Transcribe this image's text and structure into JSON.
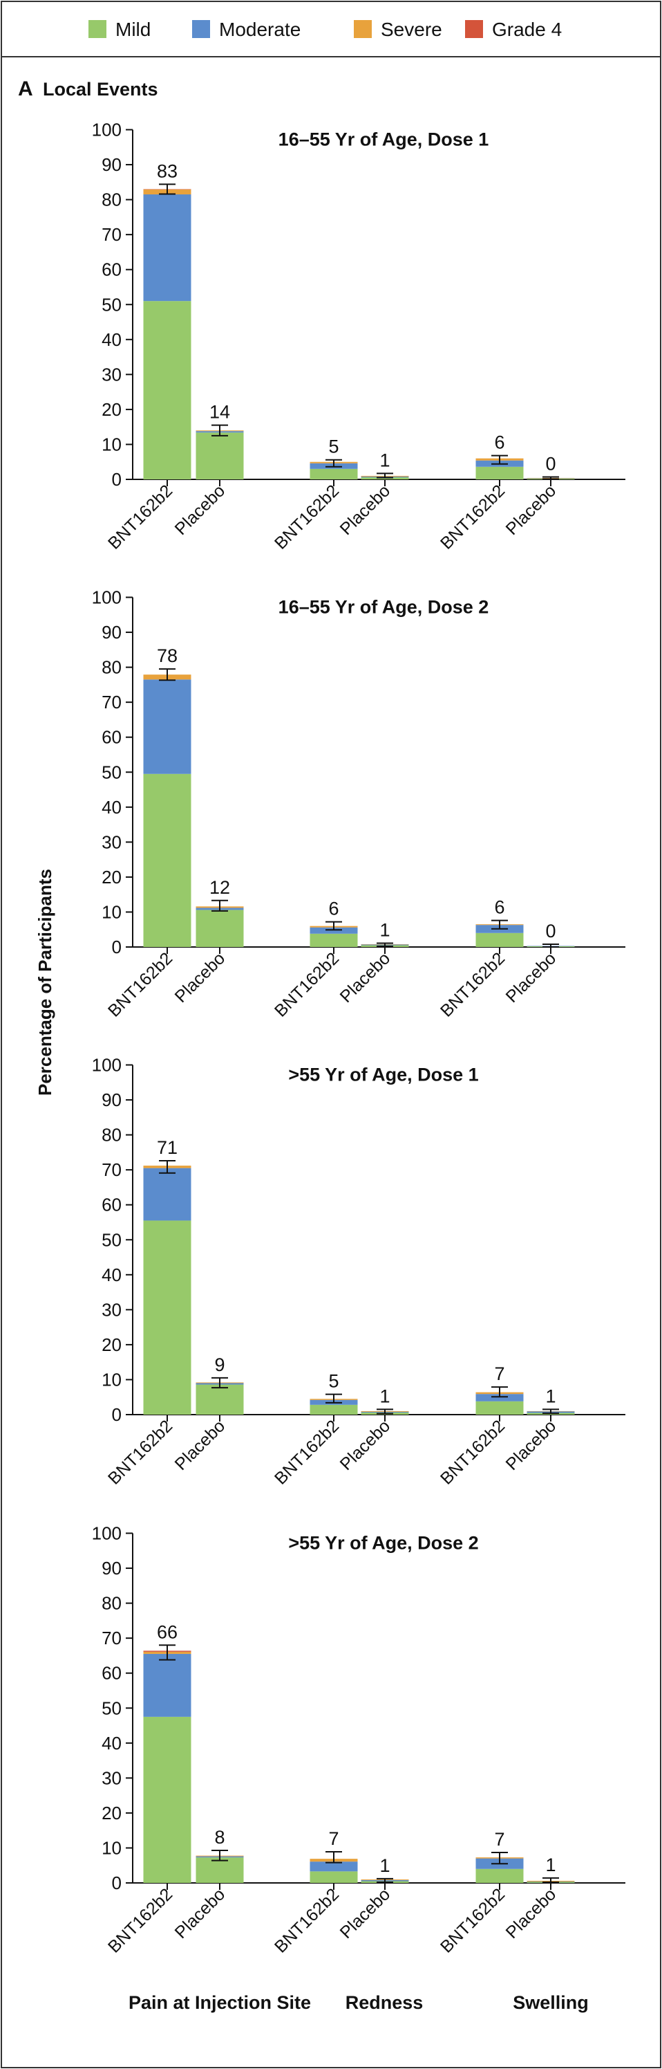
{
  "panel": {
    "letter": "A",
    "title": "Local Events"
  },
  "y_axis_title": "Percentage of Participants",
  "legend": [
    {
      "label": "Mild",
      "color": "#97c96a"
    },
    {
      "label": "Moderate",
      "color": "#5b8ccd"
    },
    {
      "label": "Severe",
      "color": "#e8a23c"
    },
    {
      "label": "Grade 4",
      "color": "#d4543a"
    }
  ],
  "event_labels": [
    "Pain at Injection Site",
    "Redness",
    "Swelling"
  ],
  "chart_data": [
    {
      "type": "bar",
      "stacked": true,
      "title": "16–55 Yr of Age, Dose 1",
      "groups": [
        "Pain at Injection Site",
        "Redness",
        "Swelling"
      ],
      "categories": [
        "BNT162b2",
        "Placebo",
        "BNT162b2",
        "Placebo",
        "BNT162b2",
        "Placebo"
      ],
      "series": [
        {
          "name": "Mild",
          "values": [
            51,
            13.4,
            3,
            0.6,
            3.6,
            0.2
          ]
        },
        {
          "name": "Moderate",
          "values": [
            30.5,
            0.4,
            1.6,
            0.2,
            1.8,
            0.1
          ]
        },
        {
          "name": "Severe",
          "values": [
            1.4,
            0.2,
            0.4,
            0.2,
            0.6,
            0.1
          ]
        },
        {
          "name": "Grade 4",
          "values": [
            0.1,
            0,
            0,
            0,
            0,
            0
          ]
        }
      ],
      "totals": [
        83,
        14,
        5,
        1,
        6,
        0
      ],
      "error": [
        [
          81.6,
          84.4
        ],
        [
          12.5,
          15.5
        ],
        [
          3.6,
          5.6
        ],
        [
          0.5,
          1.7
        ],
        [
          4.4,
          6.8
        ],
        [
          0.1,
          0.7
        ]
      ],
      "ylim": [
        0,
        100
      ],
      "yticks": [
        0,
        10,
        20,
        30,
        40,
        50,
        60,
        70,
        80,
        90,
        100
      ]
    },
    {
      "type": "bar",
      "stacked": true,
      "title": "16–55 Yr of Age, Dose 2",
      "groups": [
        "Pain at Injection Site",
        "Redness",
        "Swelling"
      ],
      "categories": [
        "BNT162b2",
        "Placebo",
        "BNT162b2",
        "Placebo",
        "BNT162b2",
        "Placebo"
      ],
      "series": [
        {
          "name": "Mild",
          "values": [
            49.5,
            10.6,
            3.8,
            0.5,
            4,
            0.2
          ]
        },
        {
          "name": "Moderate",
          "values": [
            27,
            0.6,
            1.8,
            0.2,
            2.3,
            0.1
          ]
        },
        {
          "name": "Severe",
          "values": [
            1.4,
            0.4,
            0.4,
            0.1,
            0.2,
            0
          ]
        },
        {
          "name": "Grade 4",
          "values": [
            0,
            0,
            0,
            0,
            0,
            0
          ]
        }
      ],
      "totals": [
        78,
        12,
        6,
        1,
        6,
        0
      ],
      "error": [
        [
          76.3,
          79.5
        ],
        [
          10.3,
          13.3
        ],
        [
          4.9,
          7.2
        ],
        [
          0.2,
          1.1
        ],
        [
          5.2,
          7.6
        ],
        [
          0,
          0.8
        ]
      ],
      "ylim": [
        0,
        100
      ],
      "yticks": [
        0,
        10,
        20,
        30,
        40,
        50,
        60,
        70,
        80,
        90,
        100
      ]
    },
    {
      "type": "bar",
      "stacked": true,
      "title": ">55 Yr of Age, Dose 1",
      "groups": [
        "Pain at Injection Site",
        "Redness",
        "Swelling"
      ],
      "categories": [
        "BNT162b2",
        "Placebo",
        "BNT162b2",
        "Placebo",
        "BNT162b2",
        "Placebo"
      ],
      "series": [
        {
          "name": "Mild",
          "values": [
            55.5,
            8.6,
            2.8,
            0.6,
            3.8,
            0.5
          ]
        },
        {
          "name": "Moderate",
          "values": [
            15,
            0.4,
            1.4,
            0.2,
            2.1,
            0.4
          ]
        },
        {
          "name": "Severe",
          "values": [
            0.7,
            0.2,
            0.3,
            0.2,
            0.5,
            0.1
          ]
        },
        {
          "name": "Grade 4",
          "values": [
            0,
            0,
            0,
            0,
            0,
            0
          ]
        }
      ],
      "totals": [
        71,
        9,
        5,
        1,
        7,
        1
      ],
      "error": [
        [
          69.1,
          72.6
        ],
        [
          7.7,
          10.5
        ],
        [
          3.4,
          5.8
        ],
        [
          0.3,
          1.5
        ],
        [
          5.1,
          7.9
        ],
        [
          0.4,
          1.5
        ]
      ],
      "ylim": [
        0,
        100
      ],
      "yticks": [
        0,
        10,
        20,
        30,
        40,
        50,
        60,
        70,
        80,
        90,
        100
      ]
    },
    {
      "type": "bar",
      "stacked": true,
      "title": ">55 Yr of Age, Dose 2",
      "groups": [
        "Pain at Injection Site",
        "Redness",
        "Swelling"
      ],
      "categories": [
        "BNT162b2",
        "Placebo",
        "BNT162b2",
        "Placebo",
        "BNT162b2",
        "Placebo"
      ],
      "series": [
        {
          "name": "Mild",
          "values": [
            47.5,
            7.3,
            3.3,
            0.5,
            4,
            0.3
          ]
        },
        {
          "name": "Moderate",
          "values": [
            18,
            0.3,
            2.8,
            0.3,
            3,
            0.1
          ]
        },
        {
          "name": "Severe",
          "values": [
            0.6,
            0.2,
            0.8,
            0.2,
            0.3,
            0.2
          ]
        },
        {
          "name": "Grade 4",
          "values": [
            0.3,
            0,
            0,
            0,
            0,
            0
          ]
        }
      ],
      "totals": [
        66,
        8,
        7,
        1,
        7,
        1
      ],
      "error": [
        [
          63.8,
          68
        ],
        [
          6.4,
          9.3
        ],
        [
          5.8,
          8.9
        ],
        [
          0.2,
          1.2
        ],
        [
          5.5,
          8.7
        ],
        [
          0.2,
          1.4
        ]
      ],
      "ylim": [
        0,
        100
      ],
      "yticks": [
        0,
        10,
        20,
        30,
        40,
        50,
        60,
        70,
        80,
        90,
        100
      ]
    }
  ]
}
